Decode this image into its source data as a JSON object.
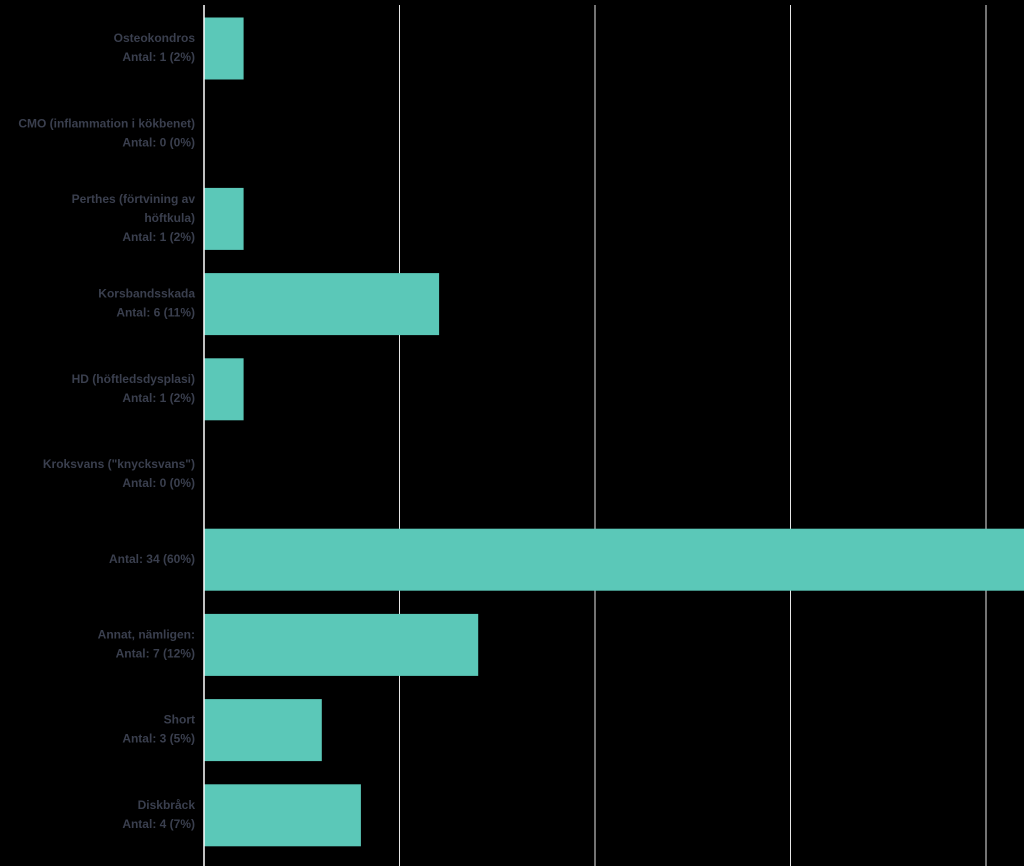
{
  "chart_data": {
    "type": "bar",
    "orientation": "horizontal",
    "title": "",
    "xlabel": "",
    "ylabel": "",
    "grid": true,
    "bar_color": "#5bc8b8",
    "background": "#000000",
    "gridline_color": "#ffffff",
    "label_color": "#3a3f4e",
    "xlim": [
      0,
      21
    ],
    "categories": [
      {
        "label_lines": [
          "Osteokondros",
          "Antal: 1 (2%)"
        ],
        "value": 1
      },
      {
        "label_lines": [
          "CMO (inflammation i kökbenet)",
          "Antal: 0 (0%)"
        ],
        "value": 0
      },
      {
        "label_lines": [
          "Perthes (förtvining av",
          "höftkula)",
          "Antal: 1 (2%)"
        ],
        "value": 1
      },
      {
        "label_lines": [
          "Korsbandsskada",
          "Antal: 6 (11%)"
        ],
        "value": 6
      },
      {
        "label_lines": [
          "HD (höftledsdysplasi)",
          "Antal: 1 (2%)"
        ],
        "value": 1
      },
      {
        "label_lines": [
          "Kroksvans (\"knycksvans\")",
          "Antal: 0 (0%)"
        ],
        "value": 0
      },
      {
        "label_lines": [
          "Antal: 34 (60%)"
        ],
        "value": 34
      },
      {
        "label_lines": [
          "Annat, nämligen:",
          "Antal: 7 (12%)"
        ],
        "value": 7
      },
      {
        "label_lines": [
          "Short",
          "Antal: 3 (5%)"
        ],
        "value": 3
      },
      {
        "label_lines": [
          "Diskbråck",
          "Antal: 4 (7%)"
        ],
        "value": 4
      }
    ]
  }
}
